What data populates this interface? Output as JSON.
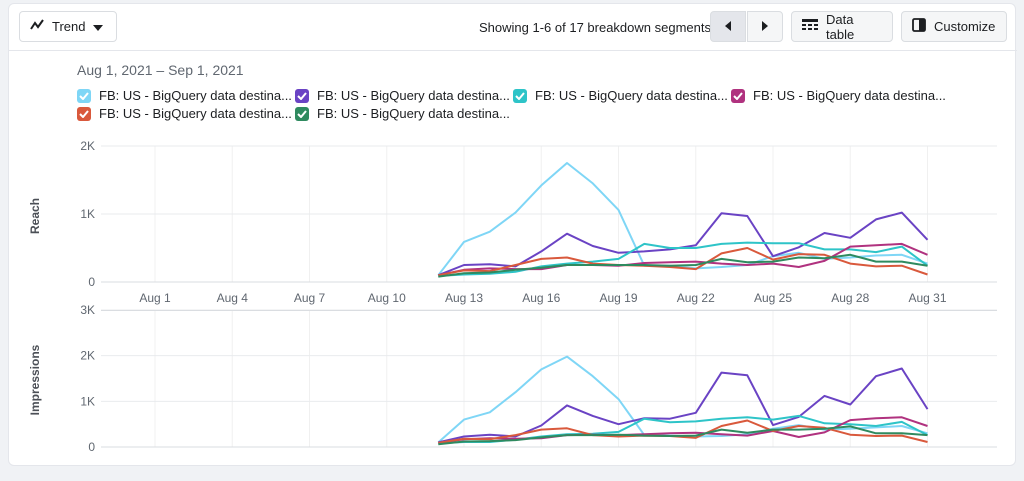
{
  "toolbar": {
    "trend_label": "Trend",
    "segments_text": "Showing 1-6 of 17 breakdown segments",
    "data_table_label": "Data table",
    "customize_label": "Customize"
  },
  "date_range": "Aug 1, 2021 – Sep 1, 2021",
  "series_legend": [
    {
      "label": "FB: US - BigQuery data destina...",
      "color": "#7fd6f6"
    },
    {
      "label": "FB: US - BigQuery data destina...",
      "color": "#6a43c4"
    },
    {
      "label": "FB: US - BigQuery data destina...",
      "color": "#2ec4c8"
    },
    {
      "label": "FB: US - BigQuery data destina...",
      "color": "#b0327f"
    },
    {
      "label": "FB: US - BigQuery data destina...",
      "color": "#d9593c"
    },
    {
      "label": "FB: US - BigQuery data destina...",
      "color": "#2f8a5f"
    }
  ],
  "chart_data": [
    {
      "type": "line",
      "ylabel": "Reach",
      "ylim": [
        0,
        2000
      ],
      "yticks": [
        "0",
        "1K",
        "2K"
      ],
      "x_ticks": [
        "Aug 1",
        "Aug 4",
        "Aug 7",
        "Aug 10",
        "Aug 13",
        "Aug 16",
        "Aug 19",
        "Aug 22",
        "Aug 25",
        "Aug 28",
        "Aug 31"
      ],
      "x": [
        "Aug 12",
        "Aug 13",
        "Aug 14",
        "Aug 15",
        "Aug 16",
        "Aug 17",
        "Aug 18",
        "Aug 19",
        "Aug 20",
        "Aug 21",
        "Aug 22",
        "Aug 23",
        "Aug 24",
        "Aug 25",
        "Aug 26",
        "Aug 27",
        "Aug 28",
        "Aug 29",
        "Aug 30",
        "Aug 31"
      ],
      "grid": true,
      "series": [
        {
          "color": "#7fd6f6",
          "values": [
            100,
            590,
            740,
            1020,
            1420,
            1750,
            1450,
            1060,
            240,
            240,
            200,
            220,
            250,
            380,
            430,
            340,
            360,
            390,
            400,
            270
          ]
        },
        {
          "color": "#6a43c4",
          "values": [
            100,
            250,
            260,
            230,
            450,
            710,
            530,
            430,
            450,
            480,
            540,
            1010,
            970,
            380,
            510,
            720,
            650,
            920,
            1020,
            620
          ]
        },
        {
          "color": "#2ec4c8",
          "values": [
            90,
            110,
            120,
            150,
            230,
            270,
            300,
            340,
            560,
            500,
            500,
            560,
            580,
            570,
            570,
            480,
            480,
            440,
            520,
            240
          ]
        },
        {
          "color": "#b0327f",
          "values": [
            100,
            180,
            200,
            190,
            190,
            250,
            250,
            240,
            280,
            290,
            300,
            270,
            250,
            270,
            220,
            310,
            520,
            540,
            560,
            400
          ]
        },
        {
          "color": "#d9593c",
          "values": [
            100,
            170,
            160,
            250,
            340,
            360,
            270,
            250,
            240,
            220,
            190,
            420,
            500,
            330,
            410,
            400,
            270,
            230,
            240,
            110
          ]
        },
        {
          "color": "#2f8a5f",
          "values": [
            80,
            130,
            140,
            180,
            210,
            250,
            250,
            250,
            250,
            240,
            250,
            340,
            290,
            300,
            360,
            350,
            400,
            300,
            300,
            240
          ]
        }
      ]
    },
    {
      "type": "line",
      "ylabel": "Impressions",
      "ylim": [
        0,
        3000
      ],
      "yticks": [
        "0",
        "1K",
        "2K",
        "3K"
      ],
      "x": [
        "Aug 12",
        "Aug 13",
        "Aug 14",
        "Aug 15",
        "Aug 16",
        "Aug 17",
        "Aug 18",
        "Aug 19",
        "Aug 20",
        "Aug 21",
        "Aug 22",
        "Aug 23",
        "Aug 24",
        "Aug 25",
        "Aug 26",
        "Aug 27",
        "Aug 28",
        "Aug 29",
        "Aug 30",
        "Aug 31"
      ],
      "grid": true,
      "series": [
        {
          "color": "#7fd6f6",
          "values": [
            100,
            600,
            760,
            1200,
            1700,
            1980,
            1550,
            1050,
            260,
            250,
            230,
            240,
            280,
            400,
            480,
            380,
            400,
            430,
            460,
            300
          ]
        },
        {
          "color": "#6a43c4",
          "values": [
            100,
            230,
            270,
            230,
            470,
            910,
            680,
            500,
            630,
            620,
            750,
            1630,
            1570,
            480,
            660,
            1120,
            930,
            1550,
            1720,
            830
          ]
        },
        {
          "color": "#2ec4c8",
          "values": [
            80,
            110,
            110,
            160,
            230,
            280,
            290,
            330,
            620,
            540,
            560,
            620,
            650,
            600,
            680,
            520,
            500,
            460,
            550,
            260
          ]
        },
        {
          "color": "#b0327f",
          "values": [
            90,
            170,
            190,
            180,
            190,
            260,
            270,
            260,
            280,
            300,
            310,
            280,
            250,
            350,
            220,
            320,
            590,
            630,
            650,
            460
          ]
        },
        {
          "color": "#d9593c",
          "values": [
            90,
            180,
            170,
            260,
            380,
            410,
            260,
            230,
            250,
            240,
            200,
            460,
            580,
            350,
            460,
            420,
            270,
            240,
            250,
            110
          ]
        },
        {
          "color": "#2f8a5f",
          "values": [
            60,
            120,
            130,
            150,
            210,
            260,
            260,
            270,
            250,
            240,
            250,
            380,
            310,
            380,
            380,
            400,
            450,
            300,
            300,
            260
          ]
        }
      ]
    }
  ]
}
